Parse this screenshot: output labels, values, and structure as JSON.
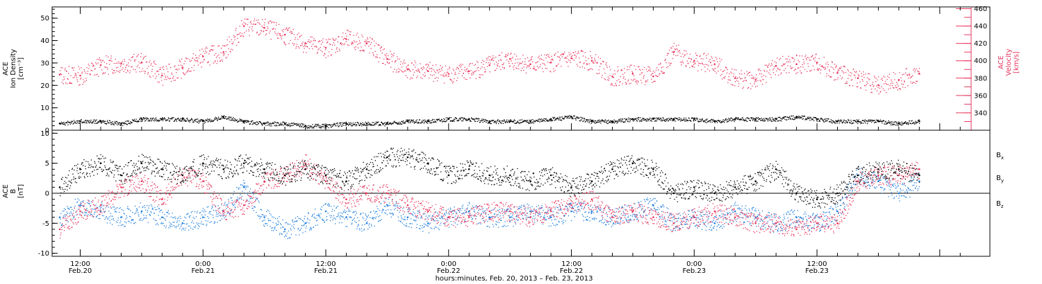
{
  "chart_data": [
    {
      "type": "scatter",
      "panel": "top",
      "ylabel_left": [
        "ACE",
        "Ion Density",
        "[cm⁻³]"
      ],
      "ylabel_right": [
        "ACE",
        "Velocity",
        "[km/s]"
      ],
      "ylim_left": [
        0,
        55
      ],
      "ylim_right": [
        320,
        462
      ],
      "yticks_left": [
        "0",
        "10",
        "20",
        "30",
        "40",
        "50"
      ],
      "yticks_right": [
        "340",
        "360",
        "380",
        "400",
        "420",
        "440",
        "460"
      ],
      "colors": {
        "density": "#000000",
        "velocity": "#e8365d"
      },
      "series": [
        {
          "name": "ACE Ion Density",
          "axis": "left",
          "x": [
            0,
            2,
            4,
            6,
            8,
            10,
            12,
            14,
            16,
            18,
            20,
            22,
            24,
            26,
            28,
            30,
            32,
            34,
            36,
            38,
            40,
            42,
            44,
            46,
            48,
            50,
            52,
            54,
            56,
            58,
            60,
            62,
            64,
            66,
            68,
            70,
            72,
            74,
            76,
            78,
            80,
            82,
            84
          ],
          "y": [
            3,
            4,
            4,
            3,
            5,
            5,
            5,
            4,
            6,
            4,
            3,
            3,
            2,
            2,
            3,
            3,
            3,
            4,
            4,
            5,
            5,
            4,
            4,
            4,
            5,
            6,
            4,
            4,
            5,
            5,
            5,
            5,
            4,
            5,
            5,
            5,
            6,
            5,
            4,
            4,
            4,
            3,
            4
          ]
        },
        {
          "name": "ACE Velocity",
          "axis": "right",
          "x": [
            0,
            2,
            4,
            6,
            8,
            10,
            12,
            14,
            16,
            18,
            20,
            22,
            24,
            26,
            28,
            30,
            32,
            34,
            36,
            38,
            40,
            42,
            44,
            46,
            48,
            50,
            52,
            54,
            56,
            58,
            60,
            62,
            64,
            66,
            68,
            70,
            72,
            74,
            76,
            78,
            80,
            82,
            84
          ],
          "y": [
            384,
            383,
            395,
            397,
            398,
            383,
            392,
            405,
            410,
            440,
            438,
            430,
            420,
            415,
            425,
            420,
            402,
            390,
            388,
            385,
            388,
            395,
            402,
            396,
            398,
            403,
            400,
            382,
            385,
            382,
            410,
            400,
            396,
            380,
            378,
            394,
            396,
            398,
            386,
            380,
            372,
            378,
            385
          ]
        }
      ]
    },
    {
      "type": "scatter",
      "panel": "bottom",
      "ylabel_left": [
        "ACE",
        "B",
        "[nT]"
      ],
      "ylim": [
        -10.5,
        10.5
      ],
      "yticks_left": [
        "-10",
        "-5",
        "0",
        "5",
        "10"
      ],
      "legend": [
        "Bx",
        "By",
        "Bz"
      ],
      "legend_sub": [
        "x",
        "y",
        "z"
      ],
      "legend_base": "B",
      "legend_placement": "right",
      "colors": {
        "Bx": "#000000",
        "By": "#1f7ede",
        "Bz": "#e8365d"
      },
      "series": [
        {
          "name": "Bx",
          "x": [
            0,
            2,
            4,
            6,
            8,
            10,
            12,
            14,
            16,
            18,
            20,
            22,
            24,
            26,
            28,
            30,
            32,
            34,
            36,
            38,
            40,
            42,
            44,
            46,
            48,
            50,
            52,
            54,
            56,
            58,
            60,
            62,
            64,
            66,
            68,
            70,
            72,
            74,
            76,
            78,
            80,
            82,
            84
          ],
          "y": [
            1,
            4,
            5,
            3,
            5,
            4,
            3,
            5,
            4,
            5,
            4,
            3,
            4,
            3,
            2,
            4,
            6,
            6,
            5,
            3,
            4,
            3,
            3,
            2,
            3,
            1,
            2,
            4,
            5,
            4,
            0,
            1,
            0,
            1,
            2,
            4,
            0,
            -1,
            0,
            3,
            4,
            4,
            3
          ]
        },
        {
          "name": "By",
          "x": [
            0,
            2,
            4,
            6,
            8,
            10,
            12,
            14,
            16,
            18,
            20,
            22,
            24,
            26,
            28,
            30,
            32,
            34,
            36,
            38,
            40,
            42,
            44,
            46,
            48,
            50,
            52,
            54,
            56,
            58,
            60,
            62,
            64,
            66,
            68,
            70,
            72,
            74,
            76,
            78,
            80,
            82,
            84
          ],
          "y": [
            -4,
            -2,
            -3,
            -4,
            -3,
            -4,
            -5,
            -4,
            -3,
            1,
            -4,
            -6,
            -5,
            -3,
            -4,
            -5,
            -2,
            -4,
            -5,
            -4,
            -3,
            -4,
            -4,
            -3,
            -4,
            -3,
            -3,
            -4,
            -3,
            -2,
            -5,
            -4,
            -5,
            -3,
            -4,
            -5,
            -4,
            -5,
            -3,
            3,
            2,
            0,
            2
          ]
        },
        {
          "name": "Bz",
          "x": [
            0,
            2,
            4,
            6,
            8,
            10,
            12,
            14,
            16,
            18,
            20,
            22,
            24,
            26,
            28,
            30,
            32,
            34,
            36,
            38,
            40,
            42,
            44,
            46,
            48,
            50,
            52,
            54,
            56,
            58,
            60,
            62,
            64,
            66,
            68,
            70,
            72,
            74,
            76,
            78,
            80,
            82,
            84
          ],
          "y": [
            -6,
            -3,
            -2,
            1,
            2,
            -1,
            3,
            2,
            -3,
            -2,
            2,
            3,
            5,
            2,
            -1,
            0,
            0,
            -2,
            -3,
            -4,
            -4,
            -3,
            -3,
            -4,
            -3,
            -2,
            -1,
            -4,
            -3,
            -4,
            -5,
            -4,
            -3,
            -4,
            -5,
            -5,
            -6,
            -5,
            -5,
            2,
            3,
            3,
            4
          ]
        }
      ]
    }
  ],
  "x_axis": {
    "major_ticks_hours": [
      2,
      14,
      26,
      38,
      50,
      62,
      74,
      86
    ],
    "tick_labels": [
      [
        "12:00",
        "Feb.20"
      ],
      [
        "0:00",
        "Feb.21"
      ],
      [
        "12:00",
        "Feb.21"
      ],
      [
        "0:00",
        "Feb.22"
      ],
      [
        "12:00",
        "Feb.22"
      ],
      [
        "0:00",
        "Feb.23"
      ],
      [
        "12:00",
        "Feb.23"
      ]
    ],
    "tick_label_hours": [
      2,
      14,
      26,
      38,
      50,
      62,
      74
    ],
    "xlim_hours": [
      -0.75,
      90.9
    ],
    "xlabel": "hours:minutes, Feb. 20, 2013 – Feb. 23, 2013"
  }
}
